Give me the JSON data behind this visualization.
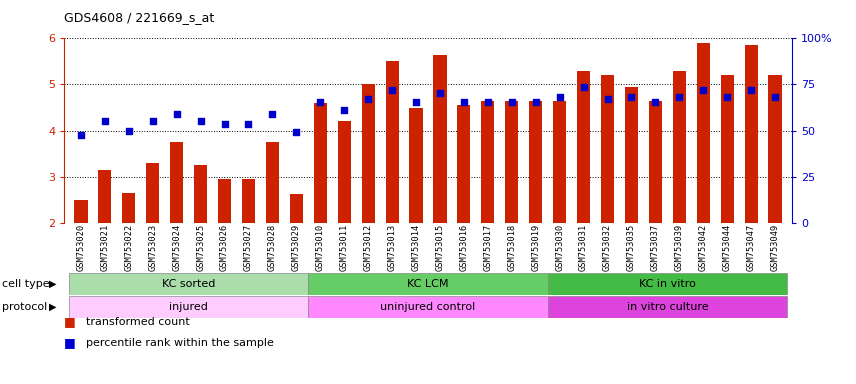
{
  "title": "GDS4608 / 221669_s_at",
  "samples": [
    "GSM753020",
    "GSM753021",
    "GSM753022",
    "GSM753023",
    "GSM753024",
    "GSM753025",
    "GSM753026",
    "GSM753027",
    "GSM753028",
    "GSM753029",
    "GSM753010",
    "GSM753011",
    "GSM753012",
    "GSM753013",
    "GSM753014",
    "GSM753015",
    "GSM753016",
    "GSM753017",
    "GSM753018",
    "GSM753019",
    "GSM753030",
    "GSM753031",
    "GSM753032",
    "GSM753035",
    "GSM753037",
    "GSM753039",
    "GSM753042",
    "GSM753044",
    "GSM753047",
    "GSM753049"
  ],
  "transformed_count": [
    2.5,
    3.15,
    2.65,
    3.3,
    3.75,
    3.25,
    2.95,
    2.95,
    3.75,
    2.62,
    4.6,
    4.2,
    5.0,
    5.5,
    4.5,
    5.65,
    4.55,
    4.65,
    4.65,
    4.65,
    4.65,
    5.3,
    5.2,
    4.95,
    4.65,
    5.3,
    5.9,
    5.2,
    5.85,
    5.2
  ],
  "percentile_rank_left_scale": [
    3.9,
    4.2,
    4.0,
    4.2,
    4.35,
    4.2,
    4.15,
    4.15,
    4.35,
    3.97,
    4.62,
    4.45,
    4.68,
    4.88,
    4.62,
    4.82,
    4.62,
    4.62,
    4.62,
    4.62,
    4.72,
    4.95,
    4.68,
    4.72,
    4.62,
    4.72,
    4.88,
    4.72,
    4.88,
    4.72
  ],
  "cell_type_groups": [
    {
      "label": "KC sorted",
      "start": 0,
      "end": 9,
      "color": "#aaddaa"
    },
    {
      "label": "KC LCM",
      "start": 10,
      "end": 19,
      "color": "#66cc66"
    },
    {
      "label": "KC in vitro",
      "start": 20,
      "end": 29,
      "color": "#44bb44"
    }
  ],
  "protocol_groups": [
    {
      "label": "injured",
      "start": 0,
      "end": 9,
      "color": "#ffccff"
    },
    {
      "label": "uninjured control",
      "start": 10,
      "end": 19,
      "color": "#ff88ff"
    },
    {
      "label": "in vitro culture",
      "start": 20,
      "end": 29,
      "color": "#dd44dd"
    }
  ],
  "bar_color": "#CC2200",
  "dot_color": "#0000CC",
  "ylim": [
    2,
    6
  ],
  "yticks_left": [
    2,
    3,
    4,
    5,
    6
  ],
  "yticks_right_vals": [
    0,
    25,
    50,
    75,
    100
  ],
  "background_color": "#FFFFFF",
  "cell_type_label": "cell type",
  "protocol_label": "protocol",
  "legend_items": [
    {
      "label": "transformed count",
      "color": "#CC2200"
    },
    {
      "label": "percentile rank within the sample",
      "color": "#0000CC"
    }
  ]
}
